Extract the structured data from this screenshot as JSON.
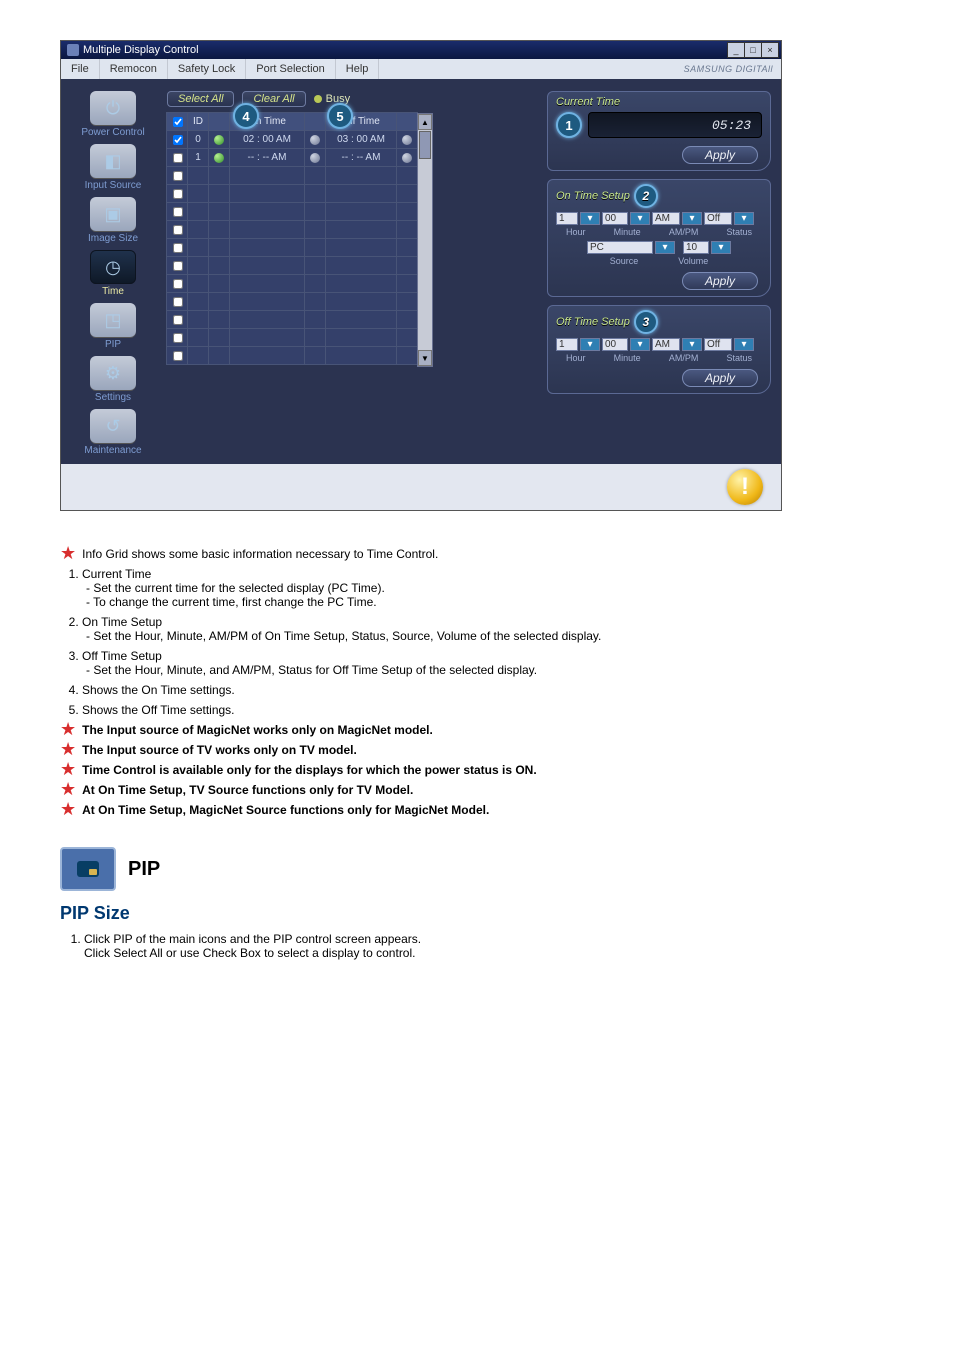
{
  "app": {
    "title": "Multiple Display Control",
    "menus": [
      "File",
      "Remocon",
      "Safety Lock",
      "Port Selection",
      "Help"
    ],
    "brand": "SAMSUNG DIGITAll"
  },
  "sidebar": [
    {
      "label": "Power Control",
      "glyph": "⏻",
      "selected": false
    },
    {
      "label": "Input Source",
      "glyph": "◧",
      "selected": false
    },
    {
      "label": "Image Size",
      "glyph": "▣",
      "selected": false
    },
    {
      "label": "Time",
      "glyph": "◷",
      "selected": true
    },
    {
      "label": "PIP",
      "glyph": "◳",
      "selected": false
    },
    {
      "label": "Settings",
      "glyph": "⚙",
      "selected": false
    },
    {
      "label": "Maintenance",
      "glyph": "↺",
      "selected": false
    }
  ],
  "toolbar": {
    "select_all": "Select All",
    "clear_all": "Clear All",
    "busy": "Busy"
  },
  "grid": {
    "columns": {
      "chk": "☑",
      "id": "ID",
      "st1": "",
      "on": "On Time",
      "st2": "",
      "off": "Off Time",
      "st3": ""
    },
    "rows": [
      {
        "chk": true,
        "id": "0",
        "st1": "green",
        "on": "02 : 00 AM",
        "st2": "grey",
        "off": "03 : 00 AM",
        "st3": "grey"
      },
      {
        "chk": false,
        "id": "1",
        "st1": "green",
        "on": "-- : -- AM",
        "st2": "grey",
        "off": "-- : -- AM",
        "st3": "grey"
      },
      {
        "chk": false,
        "id": "",
        "st1": "",
        "on": "",
        "st2": "",
        "off": "",
        "st3": ""
      },
      {
        "chk": false,
        "id": "",
        "st1": "",
        "on": "",
        "st2": "",
        "off": "",
        "st3": ""
      },
      {
        "chk": false,
        "id": "",
        "st1": "",
        "on": "",
        "st2": "",
        "off": "",
        "st3": ""
      },
      {
        "chk": false,
        "id": "",
        "st1": "",
        "on": "",
        "st2": "",
        "off": "",
        "st3": ""
      },
      {
        "chk": false,
        "id": "",
        "st1": "",
        "on": "",
        "st2": "",
        "off": "",
        "st3": ""
      },
      {
        "chk": false,
        "id": "",
        "st1": "",
        "on": "",
        "st2": "",
        "off": "",
        "st3": ""
      },
      {
        "chk": false,
        "id": "",
        "st1": "",
        "on": "",
        "st2": "",
        "off": "",
        "st3": ""
      },
      {
        "chk": false,
        "id": "",
        "st1": "",
        "on": "",
        "st2": "",
        "off": "",
        "st3": ""
      },
      {
        "chk": false,
        "id": "",
        "st1": "",
        "on": "",
        "st2": "",
        "off": "",
        "st3": ""
      },
      {
        "chk": false,
        "id": "",
        "st1": "",
        "on": "",
        "st2": "",
        "off": "",
        "st3": ""
      },
      {
        "chk": false,
        "id": "",
        "st1": "",
        "on": "",
        "st2": "",
        "off": "",
        "st3": ""
      }
    ],
    "callout4": "4",
    "callout5": "5"
  },
  "panels": {
    "current_time": {
      "title": "Current Time",
      "value": "05:23",
      "apply": "Apply",
      "callout": "1"
    },
    "on_time": {
      "title": "On Time Setup",
      "apply": "Apply",
      "callout": "2",
      "hour": "1",
      "minute": "00",
      "ampm": "AM",
      "status": "Off",
      "source": "PC",
      "volume": "10",
      "labels": {
        "hour": "Hour",
        "minute": "Minute",
        "ampm": "AM/PM",
        "status": "Status",
        "source": "Source",
        "volume": "Volume"
      }
    },
    "off_time": {
      "title": "Off Time Setup",
      "apply": "Apply",
      "callout": "3",
      "hour": "1",
      "minute": "00",
      "ampm": "AM",
      "status": "Off",
      "labels": {
        "hour": "Hour",
        "minute": "Minute",
        "ampm": "AM/PM",
        "status": "Status"
      }
    }
  },
  "notes": {
    "info": "Info Grid shows some basic information necessary to Time Control.",
    "items": [
      {
        "title": "Current Time",
        "lines": [
          "- Set the current time for the selected display (PC Time).",
          "- To change the current time, first change the PC Time."
        ]
      },
      {
        "title": "On Time Setup",
        "lines": [
          "- Set the Hour, Minute, AM/PM of On Time Setup, Status, Source, Volume of the selected display."
        ]
      },
      {
        "title": "Off Time Setup",
        "lines": [
          "- Set the Hour, Minute, and AM/PM, Status for Off Time Setup of the selected display."
        ]
      },
      {
        "title": "Shows the On Time settings.",
        "lines": []
      },
      {
        "title": "Shows the Off Time settings.",
        "lines": []
      }
    ],
    "warnings": [
      "The Input source of MagicNet works only on MagicNet model.",
      "The Input source of TV works only on TV model.",
      "Time Control is available only for the displays for which the power status is ON.",
      "At On Time Setup, TV Source functions only for TV Model.",
      "At On Time Setup, MagicNet Source functions only for MagicNet Model."
    ]
  },
  "pip": {
    "heading": "PIP",
    "sub": "PIP Size",
    "step1a": "Click PIP of the main icons and the PIP control screen appears.",
    "step1b": "Click Select All or use Check Box to select a display to control."
  },
  "warn_icon": "!"
}
